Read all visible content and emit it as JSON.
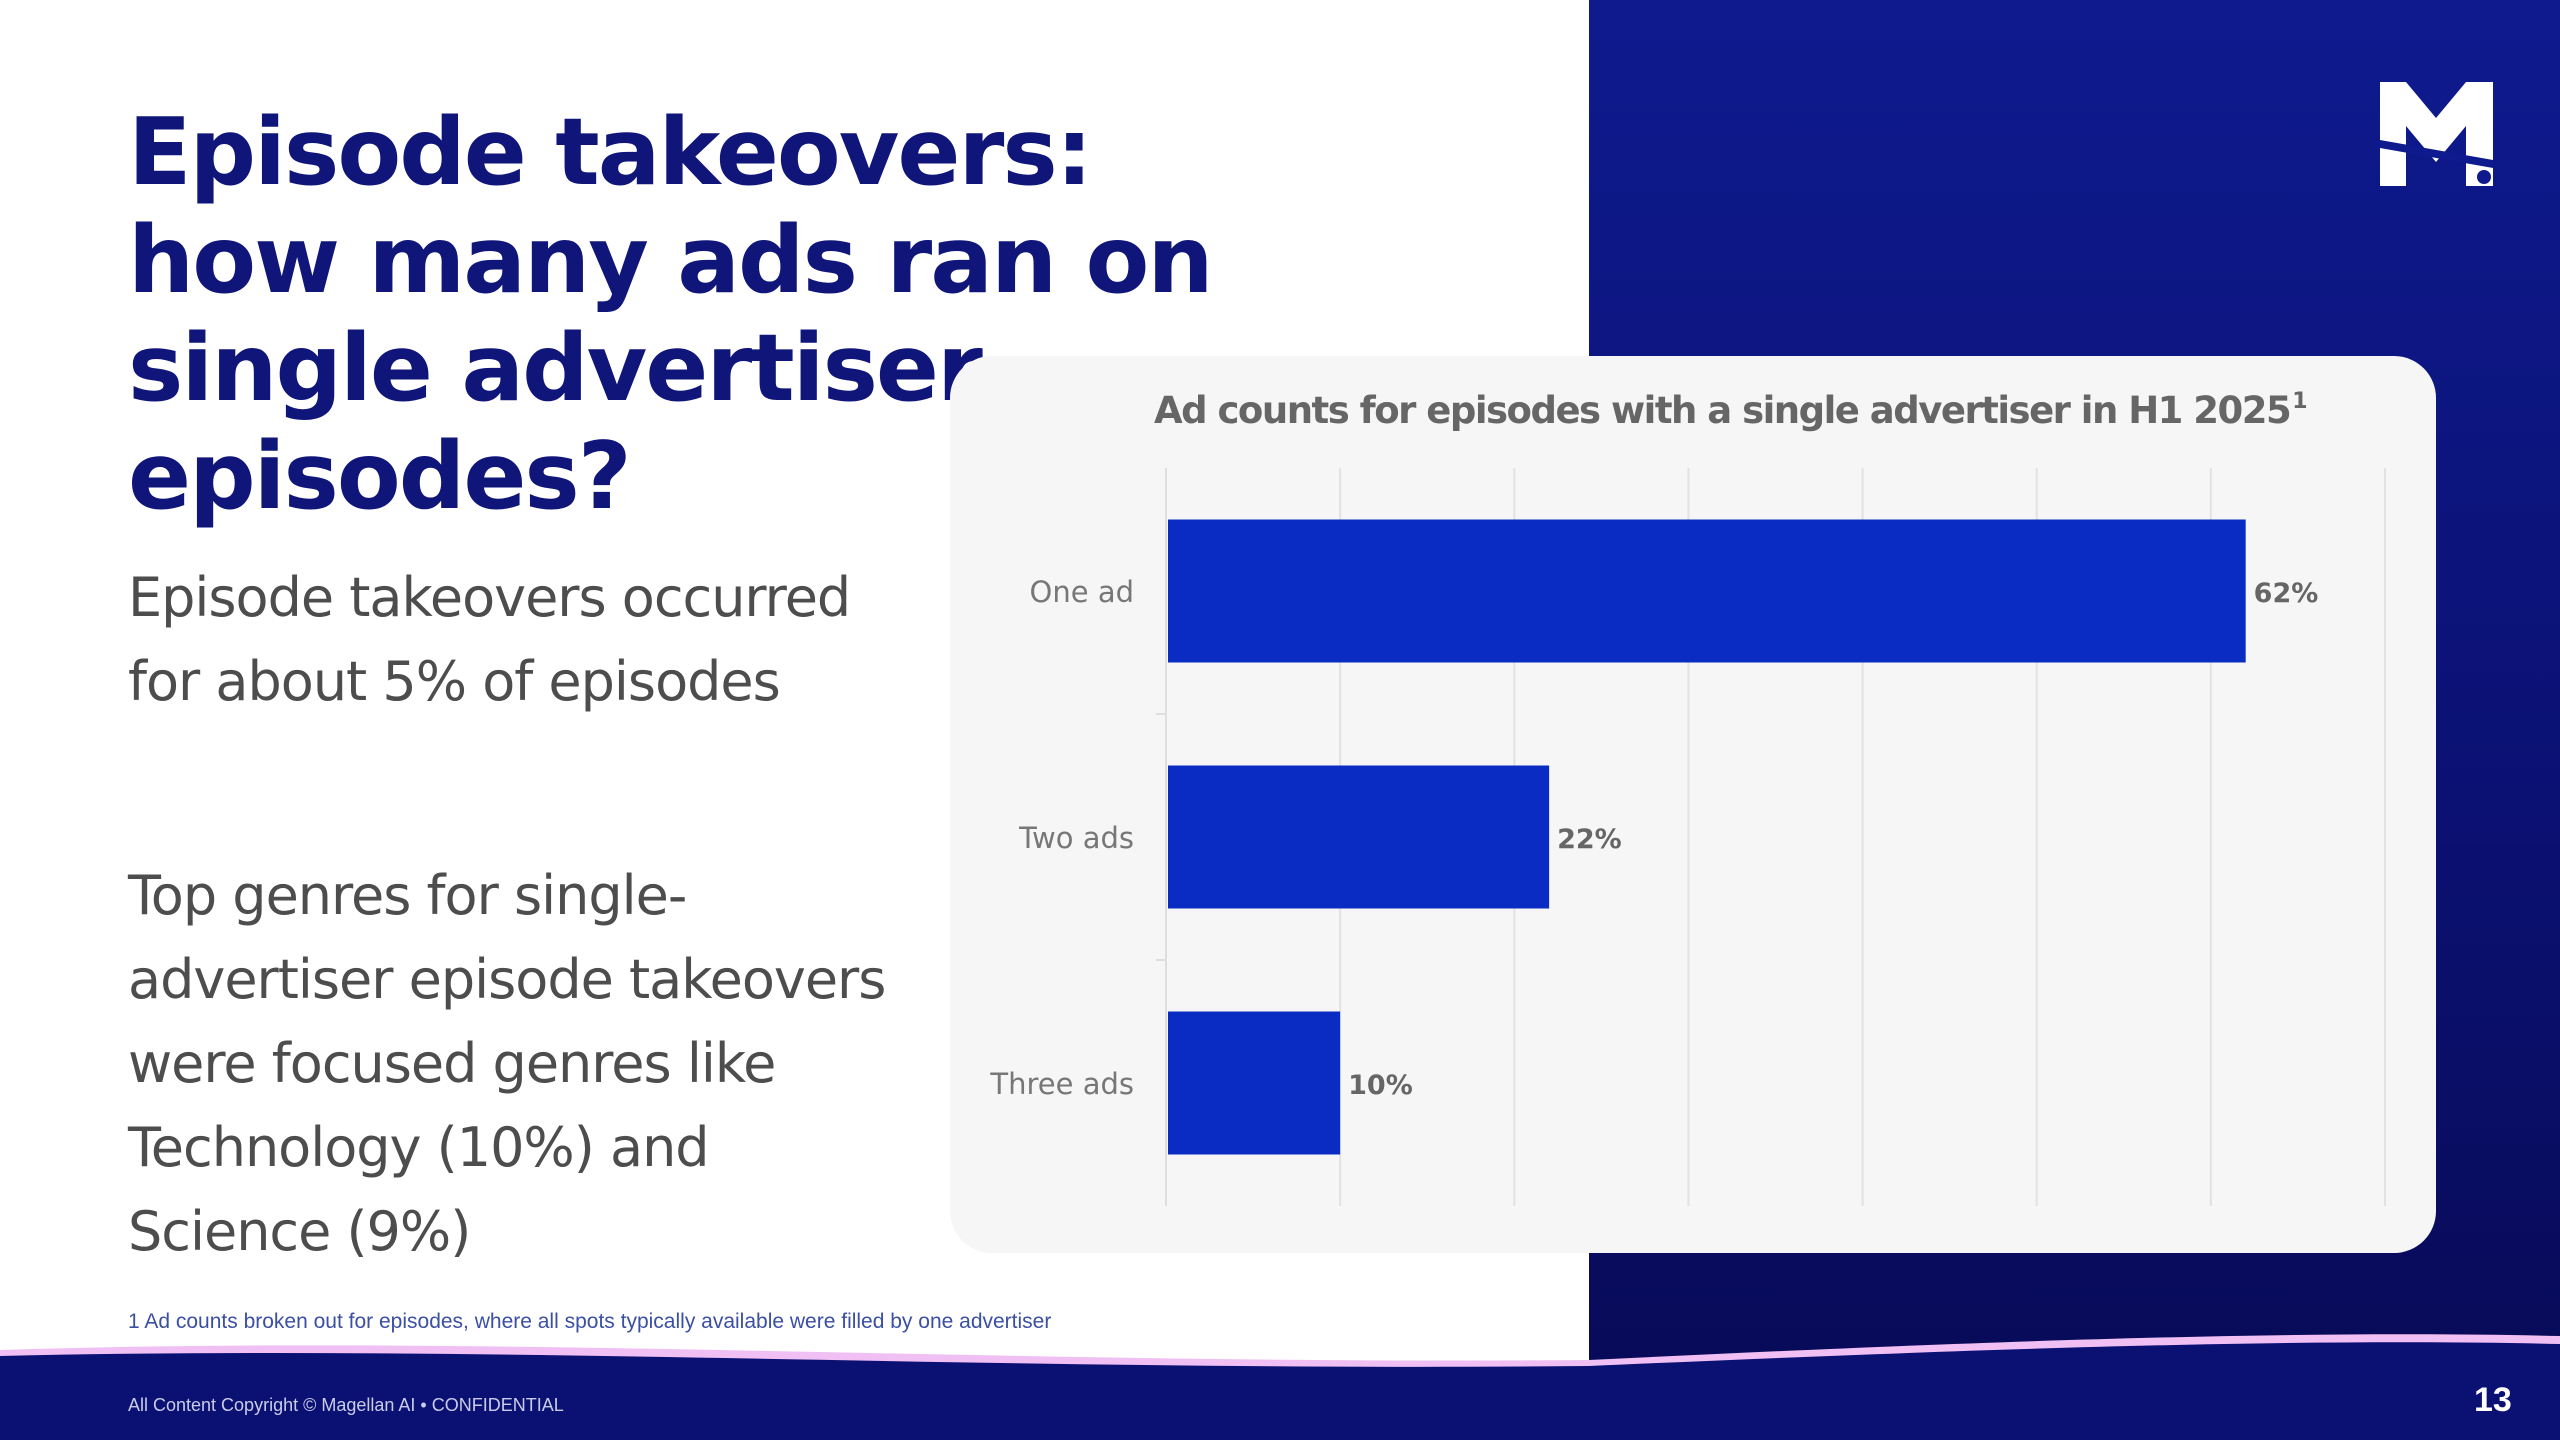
{
  "slide": {
    "title": "Episode takeovers: how many ads ran on single advertiser episodes?",
    "paragraph1": "Episode takeovers occurred for about 5% of episodes",
    "paragraph2": "Top genres for single-advertiser episode takeovers were focused genres like Technology (10%) and Science (9%)",
    "footnote": "1 Ad counts broken out for episodes, where all spots typically available were filled by one advertiser",
    "copyright": "All Content Copyright © Magellan AI • CONFIDENTIAL",
    "page_number": "13",
    "logo_icon": "magellan-m-logo-icon"
  },
  "colors": {
    "accent": "#0f1579",
    "bar": "#0a2cc2",
    "panel": "#0b1173",
    "card": "#f6f6f6",
    "wave": "#f0bff3"
  },
  "chart_data": {
    "type": "bar",
    "orientation": "horizontal",
    "title": "Ad counts for episodes with a single advertiser in H1 2025",
    "title_superscript": "1",
    "categories": [
      "One ad",
      "Two ads",
      "Three ads"
    ],
    "values": [
      62,
      22,
      10
    ],
    "value_labels": [
      "62%",
      "22%",
      "10%"
    ],
    "xlim": [
      0,
      70
    ],
    "grid": true,
    "xlabel": "",
    "ylabel": ""
  }
}
